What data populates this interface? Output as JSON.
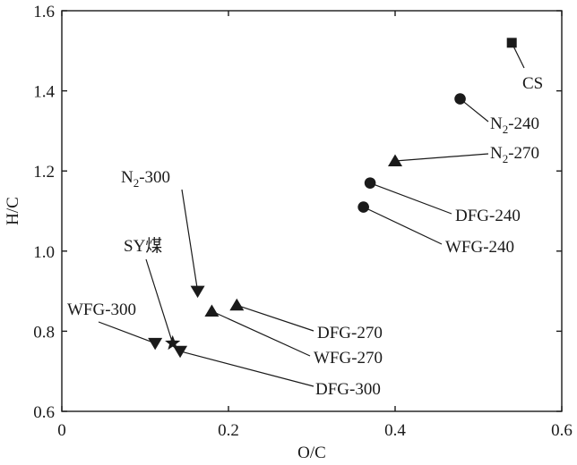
{
  "chart_data": {
    "type": "scatter",
    "title": "",
    "xlabel": "O/C",
    "ylabel": "H/C",
    "xlim": [
      0,
      0.6
    ],
    "ylim": [
      0.6,
      1.6
    ],
    "xticks": [
      0,
      0.2,
      0.4,
      0.6
    ],
    "yticks": [
      0.6,
      0.8,
      1.0,
      1.2,
      1.4,
      1.6
    ],
    "xtick_labels": [
      "0",
      "0.2",
      "0.4",
      "0.6"
    ],
    "ytick_labels": [
      "0.6",
      "0.8",
      "1.0",
      "1.2",
      "1.4",
      "1.6"
    ],
    "grid": false,
    "points": [
      {
        "label": "CS",
        "label_sub": "",
        "label_tail": "",
        "marker": "square",
        "x": 0.54,
        "y": 1.52
      },
      {
        "label": "N",
        "label_sub": "2",
        "label_tail": "-240",
        "marker": "circle",
        "x": 0.478,
        "y": 1.38
      },
      {
        "label": "N",
        "label_sub": "2",
        "label_tail": "-270",
        "marker": "triangle-up",
        "x": 0.4,
        "y": 1.225
      },
      {
        "label": "DFG-240",
        "label_sub": "",
        "label_tail": "",
        "marker": "circle",
        "x": 0.37,
        "y": 1.17
      },
      {
        "label": "WFG-240",
        "label_sub": "",
        "label_tail": "",
        "marker": "circle",
        "x": 0.362,
        "y": 1.11
      },
      {
        "label": "N",
        "label_sub": "2",
        "label_tail": "-300",
        "marker": "triangle-down",
        "x": 0.163,
        "y": 0.9
      },
      {
        "label": "DFG-270",
        "label_sub": "",
        "label_tail": "",
        "marker": "triangle-up",
        "x": 0.21,
        "y": 0.865
      },
      {
        "label": "WFG-270",
        "label_sub": "",
        "label_tail": "",
        "marker": "triangle-up",
        "x": 0.18,
        "y": 0.85
      },
      {
        "label": "SY煤",
        "label_sub": "",
        "label_tail": "",
        "marker": "star",
        "x": 0.133,
        "y": 0.77
      },
      {
        "label": "WFG-300",
        "label_sub": "",
        "label_tail": "",
        "marker": "triangle-down",
        "x": 0.112,
        "y": 0.77
      },
      {
        "label": "DFG-300",
        "label_sub": "",
        "label_tail": "",
        "marker": "triangle-down",
        "x": 0.142,
        "y": 0.75
      }
    ]
  }
}
